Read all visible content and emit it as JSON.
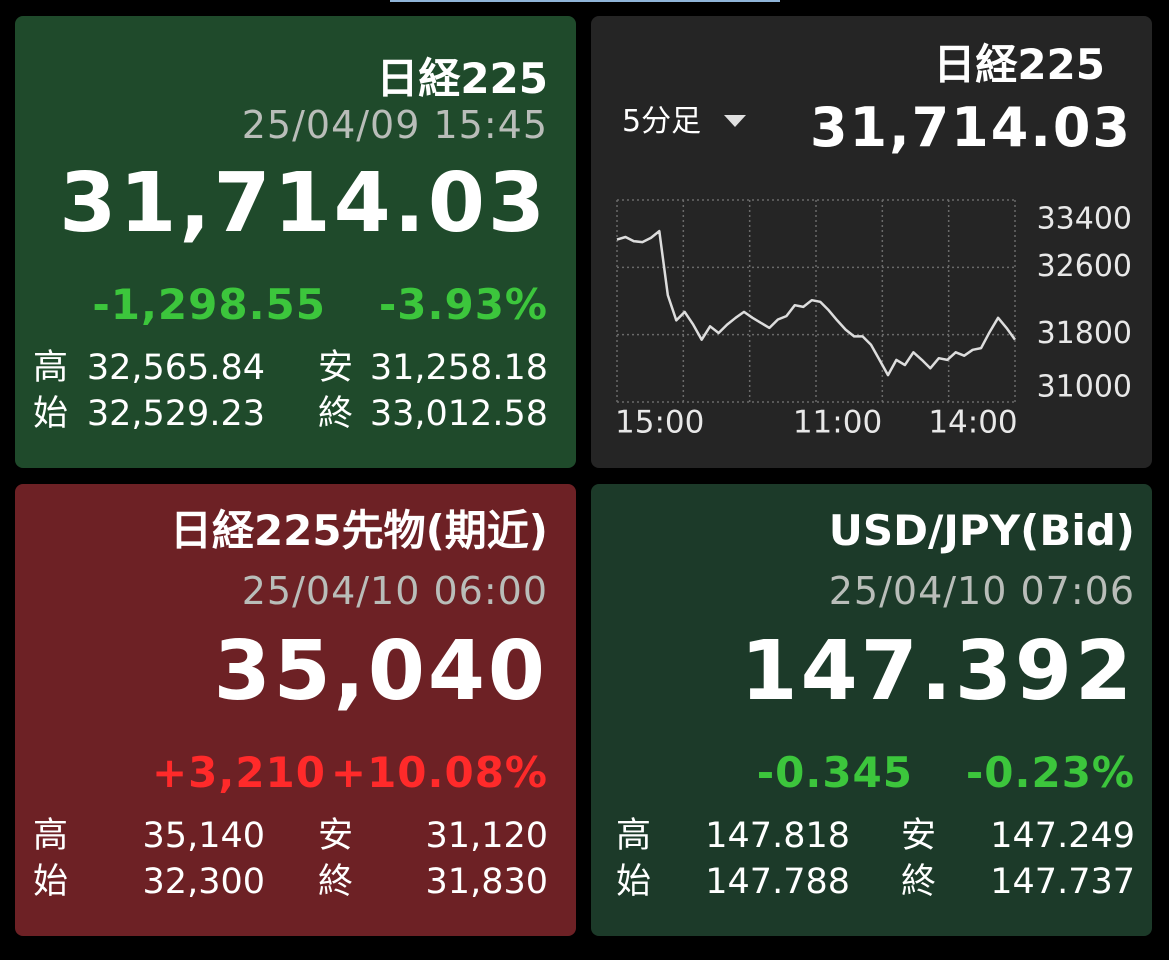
{
  "cards": [
    {
      "title": "日経225",
      "datetime": "25/04/09 15:45",
      "price": "31,714.03",
      "change": "-1,298.55",
      "change_pct": "-3.93%",
      "stats": [
        {
          "label": "高",
          "value": "32,565.84"
        },
        {
          "label": "安",
          "value": "31,258.18"
        },
        {
          "label": "始",
          "value": "32,529.23"
        },
        {
          "label": "終",
          "value": "33,012.58"
        }
      ]
    },
    {
      "title": "日経225",
      "interval": "5分足",
      "price": "31,714.03"
    },
    {
      "title": "日経225先物(期近)",
      "datetime": "25/04/10 06:00",
      "price": "35,040",
      "change": "+3,210",
      "change_pct": "+10.08%",
      "stats": [
        {
          "label": "高",
          "value": "35,140"
        },
        {
          "label": "安",
          "value": "31,120"
        },
        {
          "label": "始",
          "value": "32,300"
        },
        {
          "label": "終",
          "value": "31,830"
        }
      ]
    },
    {
      "title": "USD/JPY(Bid)",
      "datetime": "25/04/10 07:06",
      "price": "147.392",
      "change": "-0.345",
      "change_pct": "-0.23%",
      "stats": [
        {
          "label": "高",
          "value": "147.818"
        },
        {
          "label": "安",
          "value": "147.249"
        },
        {
          "label": "始",
          "value": "147.788"
        },
        {
          "label": "終",
          "value": "147.737"
        }
      ]
    }
  ],
  "chart_data": {
    "type": "line",
    "color": "#dddddd",
    "categories": [
      "15:00",
      null,
      null,
      null,
      null,
      null,
      null,
      null,
      null,
      null,
      null,
      null,
      null,
      null,
      null,
      null,
      null,
      null,
      null,
      null,
      null,
      "11:00",
      null,
      null,
      null,
      null,
      null,
      null,
      null,
      null,
      null,
      null,
      null,
      null,
      null,
      null,
      null,
      "14:00",
      null,
      null,
      null,
      null,
      null,
      null,
      null,
      null,
      null,
      null
    ],
    "values": [
      32930,
      32960,
      32910,
      32900,
      32950,
      33030,
      32270,
      31970,
      32070,
      31920,
      31740,
      31900,
      31820,
      31920,
      32000,
      32070,
      32000,
      31940,
      31880,
      31980,
      32020,
      32150,
      32130,
      32210,
      32190,
      32090,
      31970,
      31860,
      31780,
      31780,
      31680,
      31500,
      31320,
      31500,
      31440,
      31590,
      31500,
      31400,
      31520,
      31500,
      31590,
      31550,
      31620,
      31640,
      31830,
      32000,
      31880,
      31740
    ],
    "ylim": [
      31000,
      33400
    ],
    "yticks": [
      31000,
      31800,
      32600,
      33400
    ],
    "grid": true
  }
}
